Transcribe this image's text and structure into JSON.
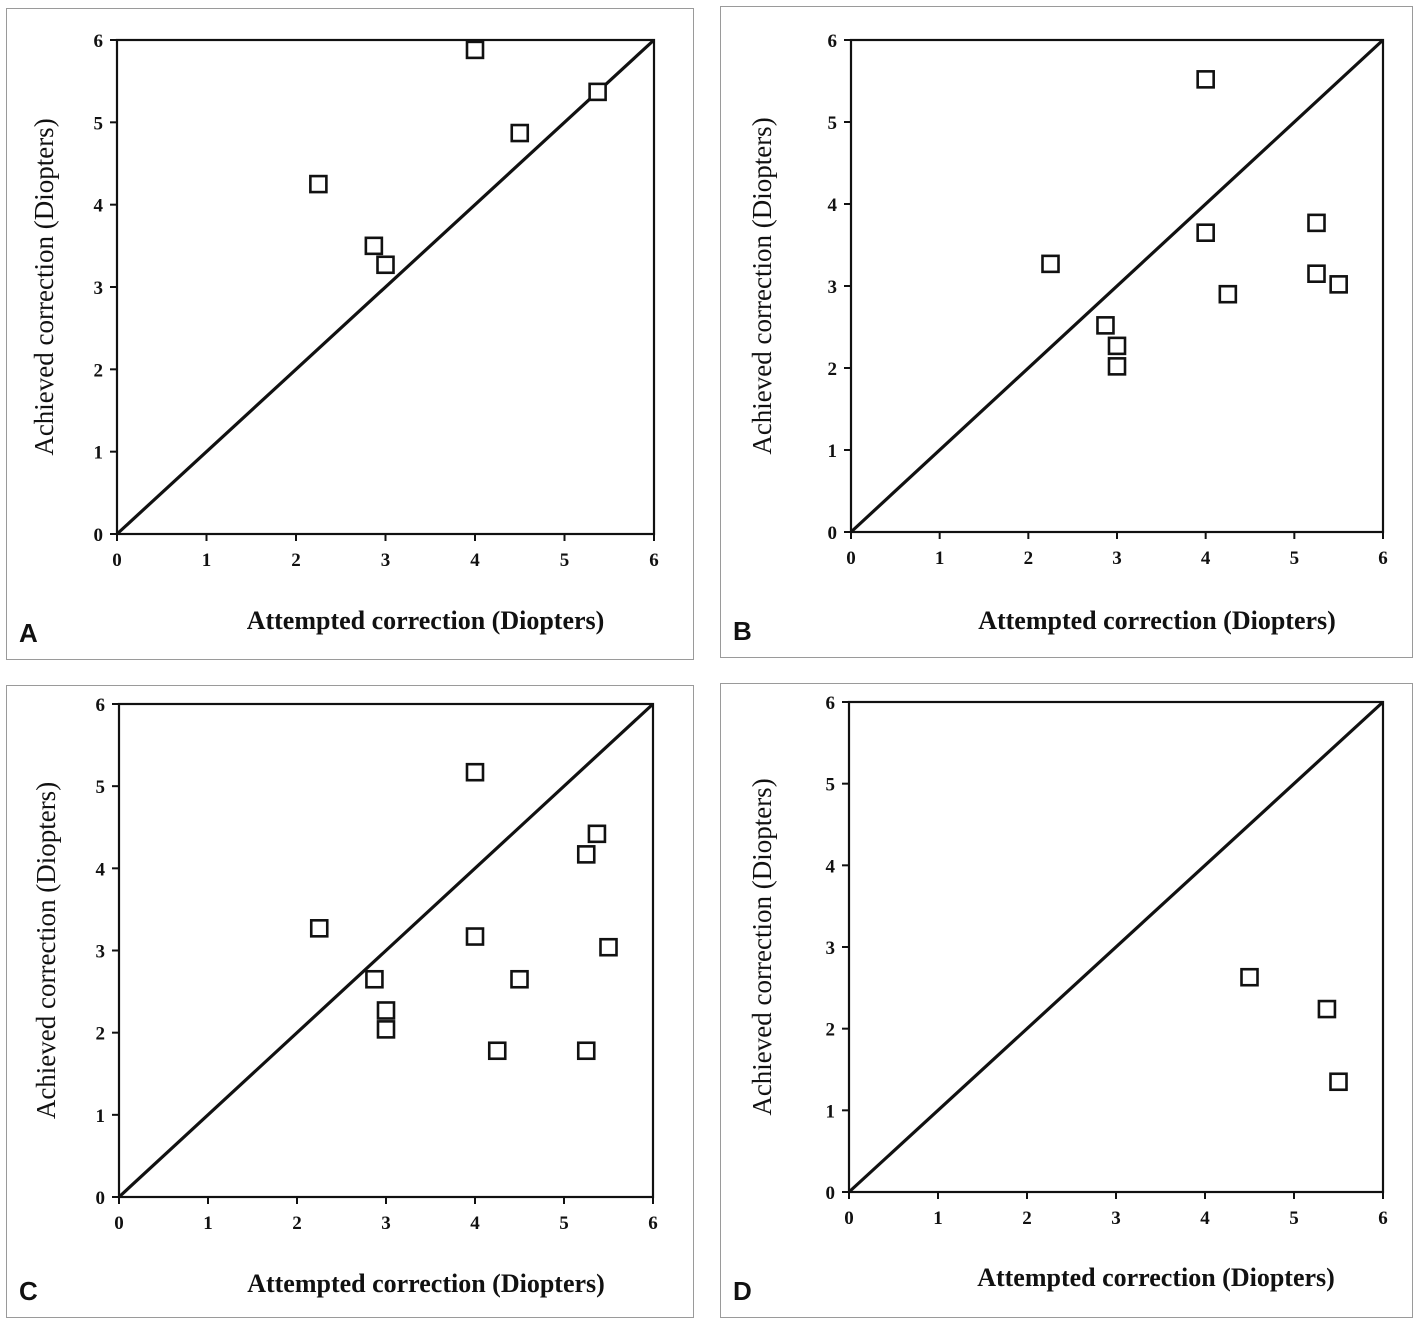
{
  "chart_data": [
    {
      "type": "scatter",
      "panel_label": "A",
      "xlabel": "Attempted correction (Diopters)",
      "ylabel": "Achieved correction (Diopters)",
      "xlim": [
        0,
        6
      ],
      "ylim": [
        0,
        6
      ],
      "xticks": [
        "0",
        "1",
        "2",
        "3",
        "4",
        "5",
        "6"
      ],
      "yticks": [
        "0",
        "1",
        "2",
        "3",
        "4",
        "5",
        "6"
      ],
      "reference_line": "y = x",
      "marker": "open-square",
      "points": [
        {
          "x": 2.25,
          "y": 4.25
        },
        {
          "x": 2.87,
          "y": 3.5
        },
        {
          "x": 3.0,
          "y": 3.27
        },
        {
          "x": 4.0,
          "y": 5.88
        },
        {
          "x": 4.5,
          "y": 4.87
        },
        {
          "x": 5.37,
          "y": 5.37
        }
      ]
    },
    {
      "type": "scatter",
      "panel_label": "B",
      "xlabel": "Attempted correction (Diopters)",
      "ylabel": "Achieved correction (Diopters)",
      "xlim": [
        0,
        6
      ],
      "ylim": [
        0,
        6
      ],
      "xticks": [
        "0",
        "1",
        "2",
        "3",
        "4",
        "5",
        "6"
      ],
      "yticks": [
        "0",
        "1",
        "2",
        "3",
        "4",
        "5",
        "6"
      ],
      "reference_line": "y = x",
      "marker": "open-square",
      "points": [
        {
          "x": 2.25,
          "y": 3.27
        },
        {
          "x": 2.87,
          "y": 2.52
        },
        {
          "x": 3.0,
          "y": 2.27
        },
        {
          "x": 3.0,
          "y": 2.02
        },
        {
          "x": 4.0,
          "y": 5.52
        },
        {
          "x": 4.0,
          "y": 3.65
        },
        {
          "x": 4.25,
          "y": 2.9
        },
        {
          "x": 5.25,
          "y": 3.77
        },
        {
          "x": 5.25,
          "y": 3.15
        },
        {
          "x": 5.5,
          "y": 3.02
        }
      ]
    },
    {
      "type": "scatter",
      "panel_label": "C",
      "xlabel": "Attempted correction (Diopters)",
      "ylabel": "Achieved correction (Diopters)",
      "xlim": [
        0,
        6
      ],
      "ylim": [
        0,
        6
      ],
      "xticks": [
        "0",
        "1",
        "2",
        "3",
        "4",
        "5",
        "6"
      ],
      "yticks": [
        "0",
        "1",
        "2",
        "3",
        "4",
        "5",
        "6"
      ],
      "reference_line": "y = x",
      "marker": "open-square",
      "points": [
        {
          "x": 2.25,
          "y": 3.27
        },
        {
          "x": 2.87,
          "y": 2.65
        },
        {
          "x": 3.0,
          "y": 2.27
        },
        {
          "x": 3.0,
          "y": 2.04
        },
        {
          "x": 4.0,
          "y": 5.17
        },
        {
          "x": 4.0,
          "y": 3.17
        },
        {
          "x": 4.25,
          "y": 1.78
        },
        {
          "x": 4.5,
          "y": 2.65
        },
        {
          "x": 5.25,
          "y": 4.17
        },
        {
          "x": 5.37,
          "y": 4.42
        },
        {
          "x": 5.25,
          "y": 1.78
        },
        {
          "x": 5.5,
          "y": 3.04
        }
      ]
    },
    {
      "type": "scatter",
      "panel_label": "D",
      "xlabel": "Attempted correction (Diopters)",
      "ylabel": "Achieved correction (Diopters)",
      "xlim": [
        0,
        6
      ],
      "ylim": [
        0,
        6
      ],
      "xticks": [
        "0",
        "1",
        "2",
        "3",
        "4",
        "5",
        "6"
      ],
      "yticks": [
        "0",
        "1",
        "2",
        "3",
        "4",
        "5",
        "6"
      ],
      "reference_line": "y = x",
      "marker": "open-square",
      "points": [
        {
          "x": 4.5,
          "y": 2.63
        },
        {
          "x": 5.37,
          "y": 2.24
        },
        {
          "x": 5.5,
          "y": 1.35
        }
      ]
    }
  ]
}
